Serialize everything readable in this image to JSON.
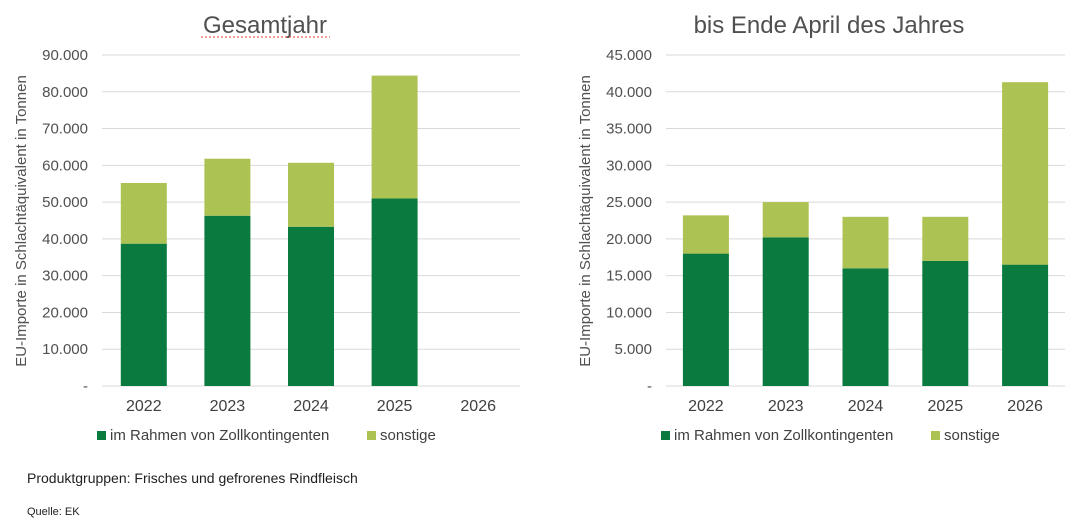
{
  "colors": {
    "zollkontingente": "#0a7a3e",
    "sonstige": "#acc253"
  },
  "charts": [
    {
      "title": "Gesamtjahr",
      "ylabel": "EU-Importe in Schlachtäquivalent in Tonnen",
      "ymax": 90000,
      "ystep": 10000,
      "yticks": [
        "-",
        "10.000",
        "20.000",
        "30.000",
        "40.000",
        "50.000",
        "60.000",
        "70.000",
        "80.000",
        "90.000"
      ],
      "legend": [
        "im Rahmen von Zollkontingenten",
        "sonstige"
      ]
    },
    {
      "title": "bis Ende April des Jahres",
      "ylabel": "EU-Importe in Schlachtäquivalent in Tonnen",
      "ymax": 45000,
      "ystep": 5000,
      "yticks": [
        "-",
        "5.000",
        "10.000",
        "15.000",
        "20.000",
        "25.000",
        "30.000",
        "35.000",
        "40.000",
        "45.000"
      ],
      "legend": [
        "im Rahmen von Zollkontingenten",
        "sonstige"
      ]
    }
  ],
  "chart_data": [
    {
      "type": "bar",
      "stacked": true,
      "title": "Gesamtjahr",
      "ylabel": "EU-Importe in Schlachtäquivalent in Tonnen",
      "categories": [
        "2022",
        "2023",
        "2024",
        "2025",
        "2026"
      ],
      "series": [
        {
          "name": "im Rahmen von Zollkontingenten",
          "values": [
            38700,
            46300,
            43300,
            51000,
            0
          ]
        },
        {
          "name": "sonstige",
          "values": [
            16500,
            15500,
            17400,
            33400,
            0
          ]
        }
      ],
      "ylim": [
        0,
        90000
      ],
      "grid": true,
      "legend": "bottom"
    },
    {
      "type": "bar",
      "stacked": true,
      "title": "bis Ende April des Jahres",
      "ylabel": "EU-Importe in Schlachtäquivalent in Tonnen",
      "categories": [
        "2022",
        "2023",
        "2024",
        "2025",
        "2026"
      ],
      "series": [
        {
          "name": "im Rahmen von Zollkontingenten",
          "values": [
            18000,
            20200,
            16000,
            17000,
            16500
          ]
        },
        {
          "name": "sonstige",
          "values": [
            5200,
            4800,
            7000,
            6000,
            24800
          ]
        }
      ],
      "ylim": [
        0,
        45000
      ],
      "grid": true,
      "legend": "bottom"
    }
  ],
  "notes": {
    "products": "Produktgruppen: Frisches und gefrorenes Rindfleisch",
    "source": "Quelle: EK"
  }
}
